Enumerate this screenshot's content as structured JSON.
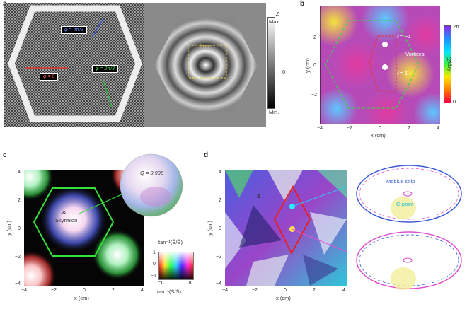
{
  "panels": {
    "a": {
      "label": "a",
      "phase_tags": [
        "φ = 4π/3",
        "φ = 0",
        "φ = 2π/3"
      ],
      "colorbar": {
        "title": "Z",
        "max": "Max.",
        "min": "Min.",
        "zero": "0"
      },
      "scale": "2 cm"
    },
    "b": {
      "label": "b",
      "vortex_labels": [
        "ℓ = −1",
        "ℓ = 1"
      ],
      "vortices": "Vortices",
      "colorbar": {
        "title": "Arg(Z)",
        "top": "2π",
        "bottom": "0"
      },
      "xlabel": "x (cm)",
      "ylabel": "y (cm)",
      "xticks": [
        "−4",
        "−2",
        "0",
        "2",
        "4"
      ],
      "yticks": [
        "2",
        "0",
        "−2"
      ]
    },
    "c": {
      "label": "c",
      "q_label": "Q = 0.998",
      "skyrmion": "Skyrmion",
      "xlabel": "x (cm)",
      "ylabel": "y (cm)",
      "xticks": [
        "−4",
        "−2",
        "0",
        "2",
        "4"
      ],
      "yticks": [
        "4",
        "2",
        "0",
        "−2",
        "−4"
      ],
      "cbar_title": "tan⁻¹(Ŝ/Ŝ)",
      "cbar_xlabel": "tan⁻¹(Ŝ/Ŝ)",
      "cbar_left": "−π",
      "cbar_right": "π",
      "cbar_top": "1",
      "cbar_mid": "0",
      "cbar_bottom": "−1"
    },
    "d": {
      "label": "d",
      "s_label": "S",
      "mobius": "Möbius strip",
      "cpoint": "C-point",
      "xlabel": "x (cm)",
      "ylabel": "y (cm)",
      "xticks": [
        "−4",
        "−2",
        "0",
        "2",
        "4"
      ],
      "yticks": [
        "4",
        "2",
        "0",
        "−2",
        "−4"
      ]
    }
  }
}
